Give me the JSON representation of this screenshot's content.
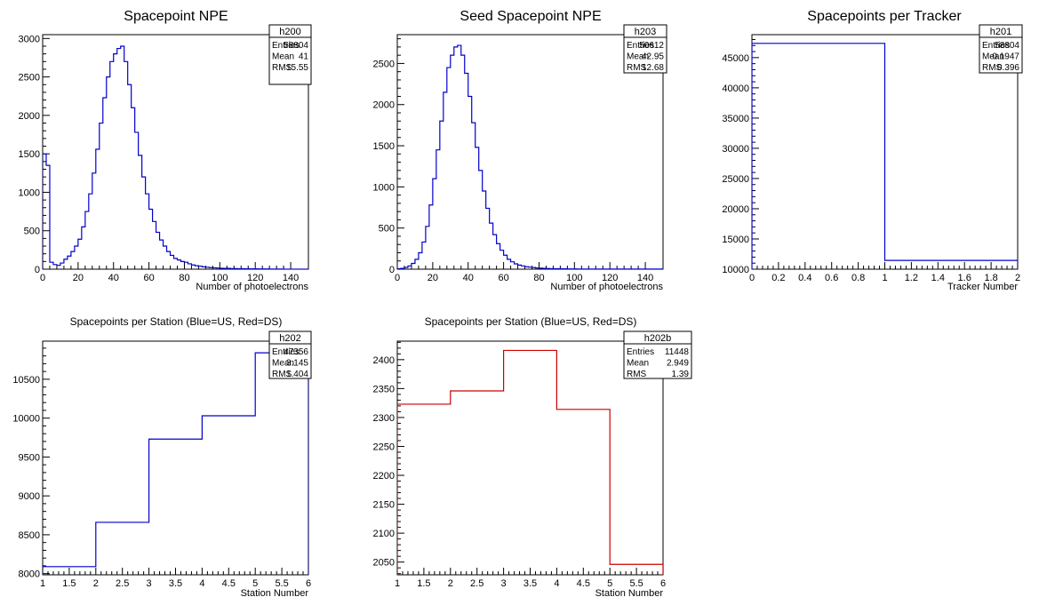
{
  "chart_data": [
    {
      "id": "h200",
      "type": "histogram",
      "title": "Spacepoint NPE",
      "xlabel": "Number of photoelectrons",
      "ylabel": "",
      "xlim": [
        0,
        150
      ],
      "ylim": [
        0,
        3050
      ],
      "bin_width": 2,
      "x_ticks": [
        0,
        20,
        40,
        60,
        80,
        100,
        120,
        140
      ],
      "x_tick_labels": [
        "0",
        "20",
        "40",
        "60",
        "80",
        "100",
        "120",
        "140"
      ],
      "y_ticks": [
        0,
        500,
        1000,
        1500,
        2000,
        2500,
        3000
      ],
      "y_tick_labels": [
        "0",
        "500",
        "1000",
        "1500",
        "2000",
        "2500",
        "3000"
      ],
      "line_color": "#0000cc",
      "values": [
        1500,
        1350,
        90,
        60,
        50,
        80,
        130,
        170,
        230,
        300,
        390,
        550,
        750,
        980,
        1250,
        1560,
        1900,
        2230,
        2500,
        2700,
        2800,
        2870,
        2900,
        2700,
        2400,
        2100,
        1780,
        1480,
        1200,
        980,
        780,
        620,
        480,
        380,
        300,
        230,
        180,
        140,
        120,
        100,
        90,
        70,
        55,
        45,
        40,
        30,
        25,
        20,
        18,
        15,
        12,
        10,
        10,
        8,
        8,
        6,
        6,
        5,
        5,
        4,
        4,
        3,
        3,
        3,
        2,
        2,
        2,
        2,
        1,
        1,
        1,
        1,
        1,
        1,
        1
      ],
      "stats": {
        "name": "h200",
        "rows": [
          [
            "Entries",
            "58804"
          ],
          [
            "Mean",
            "41"
          ],
          [
            "RMS",
            "15.55"
          ]
        ]
      }
    },
    {
      "id": "h203",
      "type": "histogram",
      "title": "Seed Spacepoint NPE",
      "xlabel": "Number of photoelectrons",
      "ylabel": "",
      "xlim": [
        0,
        150
      ],
      "ylim": [
        0,
        2850
      ],
      "bin_width": 2,
      "x_ticks": [
        0,
        20,
        40,
        60,
        80,
        100,
        120,
        140
      ],
      "x_tick_labels": [
        "0",
        "20",
        "40",
        "60",
        "80",
        "100",
        "120",
        "140"
      ],
      "y_ticks": [
        0,
        500,
        1000,
        1500,
        2000,
        2500
      ],
      "y_tick_labels": [
        "0",
        "500",
        "1000",
        "1500",
        "2000",
        "2500"
      ],
      "line_color": "#0000cc",
      "values": [
        5,
        10,
        20,
        40,
        70,
        120,
        200,
        330,
        520,
        780,
        1100,
        1450,
        1800,
        2150,
        2450,
        2600,
        2700,
        2720,
        2600,
        2380,
        2100,
        1780,
        1480,
        1200,
        950,
        740,
        560,
        420,
        310,
        230,
        170,
        120,
        90,
        65,
        50,
        40,
        30,
        25,
        20,
        15,
        12,
        10,
        8,
        6,
        5,
        5,
        4,
        4,
        3,
        3,
        3,
        2,
        2,
        2,
        2,
        1,
        1,
        1,
        1,
        1,
        1,
        1,
        1,
        1,
        1,
        1,
        1,
        1,
        1,
        1,
        1,
        1,
        1,
        1,
        1
      ],
      "stats": {
        "name": "h203",
        "rows": [
          [
            "Entries",
            "50612"
          ],
          [
            "Mean",
            "42.95"
          ],
          [
            "RMS",
            "12.68"
          ]
        ]
      }
    },
    {
      "id": "h201",
      "type": "histogram",
      "title": "Spacepoints per Tracker",
      "xlabel": "Tracker Number",
      "ylabel": "",
      "xlim": [
        0,
        2
      ],
      "ylim": [
        10000,
        48800
      ],
      "bin_width": 1,
      "x_ticks": [
        0,
        0.2,
        0.4,
        0.6,
        0.8,
        1,
        1.2,
        1.4,
        1.6,
        1.8,
        2
      ],
      "x_tick_labels": [
        "0",
        "0.2",
        "0.4",
        "0.6",
        "0.8",
        "1",
        "1.2",
        "1.4",
        "1.6",
        "1.8",
        "2"
      ],
      "y_ticks": [
        10000,
        15000,
        20000,
        25000,
        30000,
        35000,
        40000,
        45000
      ],
      "y_tick_labels": [
        "10000",
        "15000",
        "20000",
        "25000",
        "30000",
        "35000",
        "40000",
        "45000"
      ],
      "line_color": "#0000cc",
      "values": [
        47356,
        11448
      ],
      "stats": {
        "name": "h201",
        "rows": [
          [
            "Entries",
            "58804"
          ],
          [
            "Mean",
            "0.1947"
          ],
          [
            "RMS",
            "0.396"
          ]
        ]
      }
    },
    {
      "id": "h202",
      "type": "histogram",
      "title": "Spacepoints per Station (Blue=US, Red=DS)",
      "xlabel": "Station Number",
      "ylabel": "",
      "xlim": [
        1,
        6
      ],
      "ylim": [
        7985,
        10990
      ],
      "bin_width": 1,
      "x_ticks": [
        1,
        1.5,
        2,
        2.5,
        3,
        3.5,
        4,
        4.5,
        5,
        5.5,
        6
      ],
      "x_tick_labels": [
        "1",
        "1.5",
        "2",
        "2.5",
        "3",
        "3.5",
        "4",
        "4.5",
        "5",
        "5.5",
        "6"
      ],
      "y_ticks": [
        8000,
        8500,
        9000,
        9500,
        10000,
        10500
      ],
      "y_tick_labels": [
        "8000",
        "8500",
        "9000",
        "9500",
        "10000",
        "10500"
      ],
      "line_color": "#0000cc",
      "values": [
        8090,
        8660,
        9730,
        10030,
        10840
      ],
      "stats": {
        "name": "h202",
        "rows": [
          [
            "Entries",
            "47356"
          ],
          [
            "Mean",
            "3.145"
          ],
          [
            "RMS",
            "1.404"
          ]
        ]
      }
    },
    {
      "id": "h202b",
      "type": "histogram",
      "title": "Spacepoints per Station (Blue=US, Red=DS)",
      "xlabel": "Station Number",
      "ylabel": "",
      "xlim": [
        1,
        6
      ],
      "ylim": [
        2028,
        2432
      ],
      "bin_width": 1,
      "x_ticks": [
        1,
        1.5,
        2,
        2.5,
        3,
        3.5,
        4,
        4.5,
        5,
        5.5,
        6
      ],
      "x_tick_labels": [
        "1",
        "1.5",
        "2",
        "2.5",
        "3",
        "3.5",
        "4",
        "4.5",
        "5",
        "5.5",
        "6"
      ],
      "y_ticks": [
        2050,
        2100,
        2150,
        2200,
        2250,
        2300,
        2350,
        2400
      ],
      "y_tick_labels": [
        "2050",
        "2100",
        "2150",
        "2200",
        "2250",
        "2300",
        "2350",
        "2400"
      ],
      "line_color": "#cc0000",
      "values": [
        2323,
        2346,
        2416,
        2314,
        2046
      ],
      "stats": {
        "name": "h202b",
        "rows": [
          [
            "Entries",
            "11448"
          ],
          [
            "Mean",
            "2.949"
          ],
          [
            "RMS",
            "1.39"
          ]
        ]
      }
    }
  ]
}
